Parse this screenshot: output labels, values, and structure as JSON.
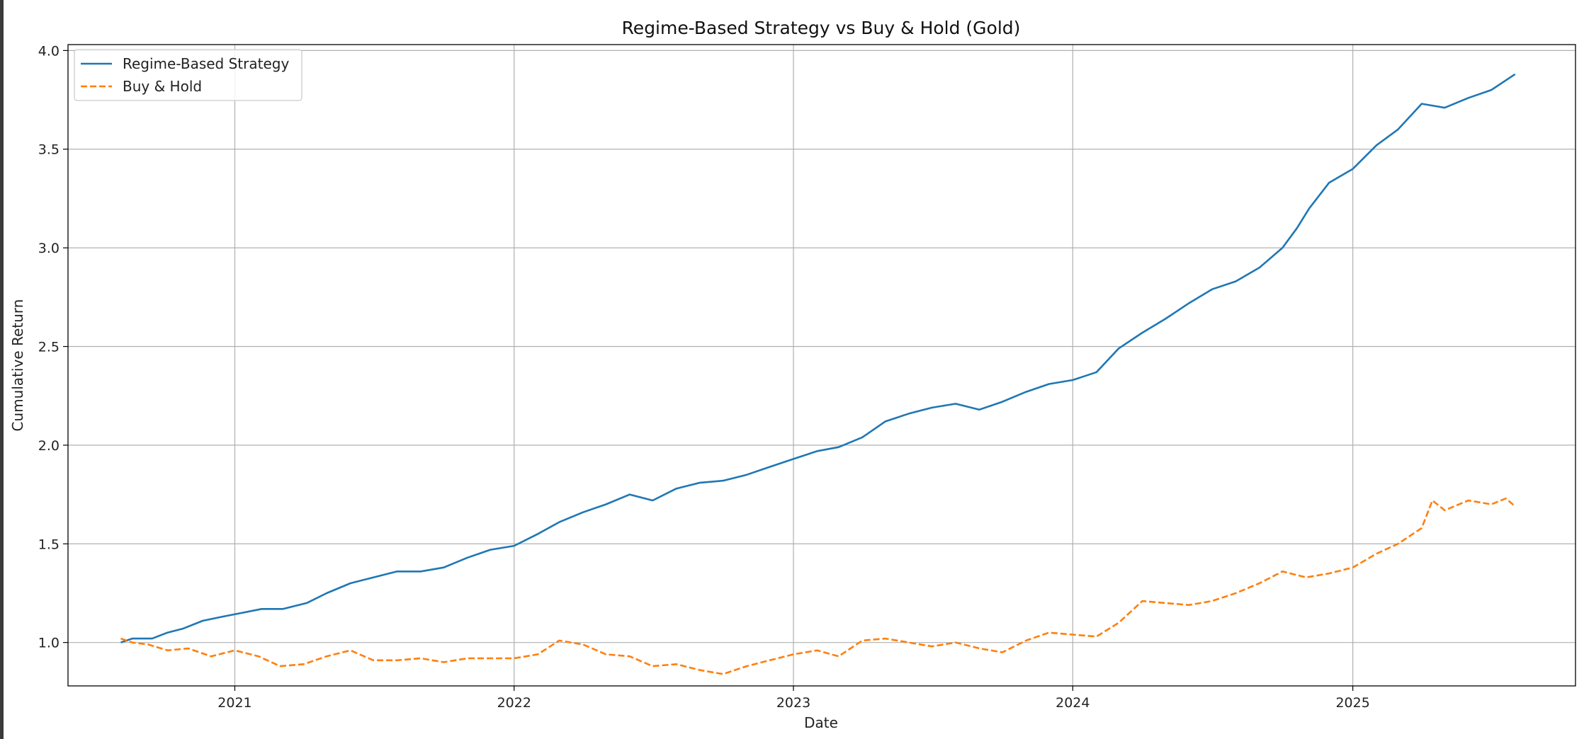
{
  "chart_data": {
    "type": "line",
    "title": "Regime-Based Strategy vs Buy & Hold (Gold)",
    "xlabel": "Date",
    "ylabel": "Cumulative Return",
    "xlim": [
      "2020-05-28",
      "2025-10-19"
    ],
    "ylim": [
      0.78,
      4.03
    ],
    "x_ticks": [
      "2021",
      "2022",
      "2023",
      "2024",
      "2025"
    ],
    "y_ticks": [
      "1.0",
      "1.5",
      "2.0",
      "2.5",
      "3.0",
      "3.5",
      "4.0"
    ],
    "grid": true,
    "legend_position": "top-left",
    "colors": {
      "strategy": "#1f77b4",
      "buy_hold": "#ff7f0e"
    },
    "series": [
      {
        "name": "Regime-Based Strategy",
        "style": "solid",
        "color": "#1f77b4",
        "points": [
          [
            "2020-08-05",
            1.0
          ],
          [
            "2020-08-20",
            1.02
          ],
          [
            "2020-09-15",
            1.02
          ],
          [
            "2020-10-05",
            1.05
          ],
          [
            "2020-10-25",
            1.07
          ],
          [
            "2020-11-20",
            1.11
          ],
          [
            "2020-12-15",
            1.13
          ],
          [
            "2021-01-10",
            1.15
          ],
          [
            "2021-02-05",
            1.17
          ],
          [
            "2021-03-05",
            1.17
          ],
          [
            "2021-04-05",
            1.2
          ],
          [
            "2021-05-01",
            1.25
          ],
          [
            "2021-06-01",
            1.3
          ],
          [
            "2021-07-01",
            1.33
          ],
          [
            "2021-08-01",
            1.36
          ],
          [
            "2021-09-01",
            1.36
          ],
          [
            "2021-10-01",
            1.38
          ],
          [
            "2021-11-01",
            1.43
          ],
          [
            "2021-12-01",
            1.47
          ],
          [
            "2022-01-01",
            1.49
          ],
          [
            "2022-02-01",
            1.55
          ],
          [
            "2022-03-01",
            1.61
          ],
          [
            "2022-04-01",
            1.66
          ],
          [
            "2022-05-01",
            1.7
          ],
          [
            "2022-06-01",
            1.75
          ],
          [
            "2022-07-01",
            1.72
          ],
          [
            "2022-08-01",
            1.78
          ],
          [
            "2022-09-01",
            1.81
          ],
          [
            "2022-10-01",
            1.82
          ],
          [
            "2022-11-01",
            1.85
          ],
          [
            "2022-12-01",
            1.89
          ],
          [
            "2023-01-01",
            1.93
          ],
          [
            "2023-02-01",
            1.97
          ],
          [
            "2023-03-01",
            1.99
          ],
          [
            "2023-04-01",
            2.04
          ],
          [
            "2023-05-01",
            2.12
          ],
          [
            "2023-06-01",
            2.16
          ],
          [
            "2023-07-01",
            2.19
          ],
          [
            "2023-08-01",
            2.21
          ],
          [
            "2023-09-01",
            2.18
          ],
          [
            "2023-10-01",
            2.22
          ],
          [
            "2023-11-01",
            2.27
          ],
          [
            "2023-12-01",
            2.31
          ],
          [
            "2024-01-01",
            2.33
          ],
          [
            "2024-02-01",
            2.37
          ],
          [
            "2024-03-01",
            2.49
          ],
          [
            "2024-04-01",
            2.57
          ],
          [
            "2024-05-01",
            2.64
          ],
          [
            "2024-06-01",
            2.72
          ],
          [
            "2024-07-01",
            2.79
          ],
          [
            "2024-08-01",
            2.83
          ],
          [
            "2024-09-01",
            2.9
          ],
          [
            "2024-10-01",
            3.0
          ],
          [
            "2024-10-20",
            3.1
          ],
          [
            "2024-11-05",
            3.2
          ],
          [
            "2024-12-01",
            3.33
          ],
          [
            "2025-01-01",
            3.4
          ],
          [
            "2025-02-01",
            3.52
          ],
          [
            "2025-03-01",
            3.6
          ],
          [
            "2025-04-01",
            3.73
          ],
          [
            "2025-05-01",
            3.71
          ],
          [
            "2025-06-01",
            3.76
          ],
          [
            "2025-07-01",
            3.8
          ],
          [
            "2025-08-01",
            3.88
          ]
        ]
      },
      {
        "name": "Buy & Hold",
        "style": "dashed",
        "color": "#ff7f0e",
        "points": [
          [
            "2020-08-05",
            1.02
          ],
          [
            "2020-08-20",
            1.0
          ],
          [
            "2020-09-10",
            0.99
          ],
          [
            "2020-10-05",
            0.96
          ],
          [
            "2020-11-01",
            0.97
          ],
          [
            "2020-12-01",
            0.93
          ],
          [
            "2021-01-01",
            0.96
          ],
          [
            "2021-02-01",
            0.93
          ],
          [
            "2021-03-01",
            0.88
          ],
          [
            "2021-04-01",
            0.89
          ],
          [
            "2021-05-01",
            0.93
          ],
          [
            "2021-06-01",
            0.96
          ],
          [
            "2021-07-01",
            0.91
          ],
          [
            "2021-08-01",
            0.91
          ],
          [
            "2021-09-01",
            0.92
          ],
          [
            "2021-10-01",
            0.9
          ],
          [
            "2021-11-01",
            0.92
          ],
          [
            "2021-12-01",
            0.92
          ],
          [
            "2022-01-01",
            0.92
          ],
          [
            "2022-02-01",
            0.94
          ],
          [
            "2022-03-01",
            1.01
          ],
          [
            "2022-04-01",
            0.99
          ],
          [
            "2022-05-01",
            0.94
          ],
          [
            "2022-06-01",
            0.93
          ],
          [
            "2022-07-01",
            0.88
          ],
          [
            "2022-08-01",
            0.89
          ],
          [
            "2022-09-01",
            0.86
          ],
          [
            "2022-10-01",
            0.84
          ],
          [
            "2022-11-01",
            0.88
          ],
          [
            "2022-12-01",
            0.91
          ],
          [
            "2023-01-01",
            0.94
          ],
          [
            "2023-02-01",
            0.96
          ],
          [
            "2023-03-01",
            0.93
          ],
          [
            "2023-04-01",
            1.01
          ],
          [
            "2023-05-01",
            1.02
          ],
          [
            "2023-06-01",
            1.0
          ],
          [
            "2023-07-01",
            0.98
          ],
          [
            "2023-08-01",
            1.0
          ],
          [
            "2023-09-01",
            0.97
          ],
          [
            "2023-10-01",
            0.95
          ],
          [
            "2023-11-01",
            1.01
          ],
          [
            "2023-12-01",
            1.05
          ],
          [
            "2024-01-01",
            1.04
          ],
          [
            "2024-02-01",
            1.03
          ],
          [
            "2024-03-01",
            1.1
          ],
          [
            "2024-04-01",
            1.21
          ],
          [
            "2024-05-01",
            1.2
          ],
          [
            "2024-06-01",
            1.19
          ],
          [
            "2024-07-01",
            1.21
          ],
          [
            "2024-08-01",
            1.25
          ],
          [
            "2024-09-01",
            1.3
          ],
          [
            "2024-10-01",
            1.36
          ],
          [
            "2024-11-01",
            1.33
          ],
          [
            "2024-12-01",
            1.35
          ],
          [
            "2025-01-01",
            1.38
          ],
          [
            "2025-02-01",
            1.45
          ],
          [
            "2025-03-01",
            1.5
          ],
          [
            "2025-04-01",
            1.58
          ],
          [
            "2025-04-15",
            1.72
          ],
          [
            "2025-05-01",
            1.67
          ],
          [
            "2025-06-01",
            1.72
          ],
          [
            "2025-07-01",
            1.7
          ],
          [
            "2025-07-20",
            1.73
          ],
          [
            "2025-08-01",
            1.69
          ]
        ]
      }
    ]
  }
}
